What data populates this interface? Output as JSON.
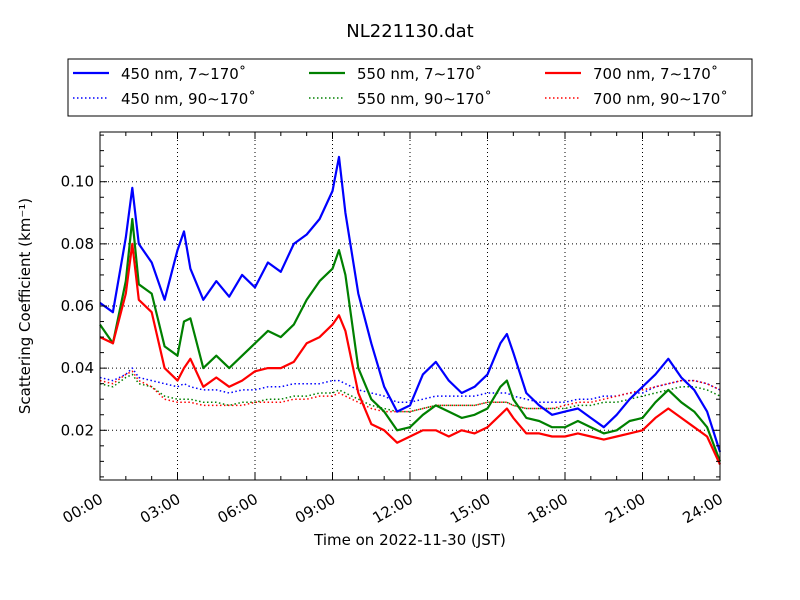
{
  "chart_data": {
    "type": "line",
    "title": "NL221130.dat",
    "xlabel": "Time on 2022-11-30 (JST)",
    "ylabel": "Scattering Coefficient (km⁻¹)",
    "x_unit": "hour",
    "xlim": [
      0,
      24
    ],
    "ylim": [
      0.004,
      0.116
    ],
    "x_ticks": [
      0,
      3,
      6,
      9,
      12,
      15,
      18,
      21,
      24
    ],
    "x_tick_labels": [
      "00:00",
      "03:00",
      "06:00",
      "09:00",
      "12:00",
      "15:00",
      "18:00",
      "21:00",
      "24:00"
    ],
    "y_ticks": [
      0.02,
      0.04,
      0.06,
      0.08,
      0.1
    ],
    "y_tick_labels": [
      "0.02",
      "0.04",
      "0.06",
      "0.08",
      "0.10"
    ],
    "grid": true,
    "legend_position": "top, above plot, 3 columns",
    "x": [
      0,
      0.5,
      1,
      1.25,
      1.5,
      2,
      2.5,
      3,
      3.25,
      3.5,
      4,
      4.5,
      5,
      5.5,
      6,
      6.5,
      7,
      7.5,
      8,
      8.5,
      9,
      9.25,
      9.5,
      10,
      10.5,
      11,
      11.5,
      12,
      12.5,
      13,
      13.5,
      14,
      14.5,
      15,
      15.5,
      15.75,
      16,
      16.5,
      17,
      17.5,
      18,
      18.5,
      19,
      19.5,
      20,
      20.5,
      21,
      21.5,
      22,
      22.5,
      23,
      23.5,
      24
    ],
    "series": [
      {
        "name": "450 nm, 7∼170˚",
        "color": "#0000ff",
        "style": "solid",
        "values": [
          0.061,
          0.058,
          0.082,
          0.098,
          0.08,
          0.074,
          0.062,
          0.078,
          0.084,
          0.072,
          0.062,
          0.068,
          0.063,
          0.07,
          0.066,
          0.074,
          0.071,
          0.08,
          0.083,
          0.088,
          0.097,
          0.108,
          0.09,
          0.064,
          0.048,
          0.034,
          0.026,
          0.028,
          0.038,
          0.042,
          0.036,
          0.032,
          0.034,
          0.038,
          0.048,
          0.051,
          0.045,
          0.032,
          0.028,
          0.025,
          0.026,
          0.027,
          0.024,
          0.021,
          0.025,
          0.03,
          0.034,
          0.038,
          0.043,
          0.037,
          0.033,
          0.026,
          0.013
        ]
      },
      {
        "name": "550 nm, 7∼170˚",
        "color": "#008000",
        "style": "solid",
        "values": [
          0.054,
          0.048,
          0.068,
          0.088,
          0.067,
          0.064,
          0.047,
          0.044,
          0.055,
          0.056,
          0.04,
          0.044,
          0.04,
          0.044,
          0.048,
          0.052,
          0.05,
          0.054,
          0.062,
          0.068,
          0.072,
          0.078,
          0.07,
          0.04,
          0.03,
          0.026,
          0.02,
          0.021,
          0.025,
          0.028,
          0.026,
          0.024,
          0.025,
          0.027,
          0.034,
          0.036,
          0.03,
          0.024,
          0.023,
          0.021,
          0.021,
          0.023,
          0.021,
          0.019,
          0.02,
          0.023,
          0.024,
          0.029,
          0.033,
          0.029,
          0.026,
          0.021,
          0.01
        ]
      },
      {
        "name": "700 nm, 7∼170˚",
        "color": "#ff0000",
        "style": "solid",
        "values": [
          0.05,
          0.048,
          0.064,
          0.08,
          0.062,
          0.058,
          0.04,
          0.036,
          0.04,
          0.043,
          0.034,
          0.037,
          0.034,
          0.036,
          0.039,
          0.04,
          0.04,
          0.042,
          0.048,
          0.05,
          0.054,
          0.057,
          0.052,
          0.032,
          0.022,
          0.02,
          0.016,
          0.018,
          0.02,
          0.02,
          0.018,
          0.02,
          0.019,
          0.021,
          0.025,
          0.027,
          0.024,
          0.019,
          0.019,
          0.018,
          0.018,
          0.019,
          0.018,
          0.017,
          0.018,
          0.019,
          0.02,
          0.024,
          0.027,
          0.024,
          0.021,
          0.018,
          0.009
        ]
      },
      {
        "name": "450 nm, 90∼170˚",
        "color": "#0000ff",
        "style": "dotted",
        "values": [
          0.037,
          0.036,
          0.038,
          0.04,
          0.037,
          0.036,
          0.035,
          0.034,
          0.035,
          0.034,
          0.033,
          0.033,
          0.032,
          0.033,
          0.033,
          0.034,
          0.034,
          0.035,
          0.035,
          0.035,
          0.036,
          0.036,
          0.035,
          0.033,
          0.032,
          0.031,
          0.029,
          0.029,
          0.03,
          0.031,
          0.031,
          0.031,
          0.031,
          0.032,
          0.032,
          0.032,
          0.031,
          0.03,
          0.029,
          0.029,
          0.029,
          0.03,
          0.03,
          0.031,
          0.031,
          0.032,
          0.032,
          0.034,
          0.035,
          0.036,
          0.036,
          0.035,
          0.033
        ]
      },
      {
        "name": "550 nm, 90∼170˚",
        "color": "#008000",
        "style": "dotted",
        "values": [
          0.035,
          0.034,
          0.037,
          0.038,
          0.035,
          0.034,
          0.031,
          0.03,
          0.03,
          0.03,
          0.029,
          0.029,
          0.028,
          0.029,
          0.029,
          0.03,
          0.03,
          0.031,
          0.031,
          0.032,
          0.032,
          0.033,
          0.032,
          0.03,
          0.028,
          0.027,
          0.026,
          0.026,
          0.027,
          0.028,
          0.028,
          0.028,
          0.028,
          0.029,
          0.029,
          0.029,
          0.028,
          0.027,
          0.027,
          0.027,
          0.027,
          0.028,
          0.028,
          0.029,
          0.029,
          0.03,
          0.031,
          0.032,
          0.033,
          0.034,
          0.034,
          0.033,
          0.031
        ]
      },
      {
        "name": "700 nm, 90∼170˚",
        "color": "#ff0000",
        "style": "dotted",
        "values": [
          0.036,
          0.035,
          0.038,
          0.039,
          0.036,
          0.034,
          0.03,
          0.029,
          0.029,
          0.029,
          0.028,
          0.028,
          0.028,
          0.028,
          0.029,
          0.029,
          0.029,
          0.03,
          0.03,
          0.031,
          0.031,
          0.032,
          0.031,
          0.029,
          0.027,
          0.026,
          0.026,
          0.026,
          0.027,
          0.028,
          0.028,
          0.028,
          0.028,
          0.029,
          0.029,
          0.029,
          0.028,
          0.027,
          0.027,
          0.027,
          0.028,
          0.029,
          0.029,
          0.03,
          0.031,
          0.032,
          0.033,
          0.034,
          0.035,
          0.036,
          0.036,
          0.035,
          0.033
        ]
      }
    ]
  }
}
